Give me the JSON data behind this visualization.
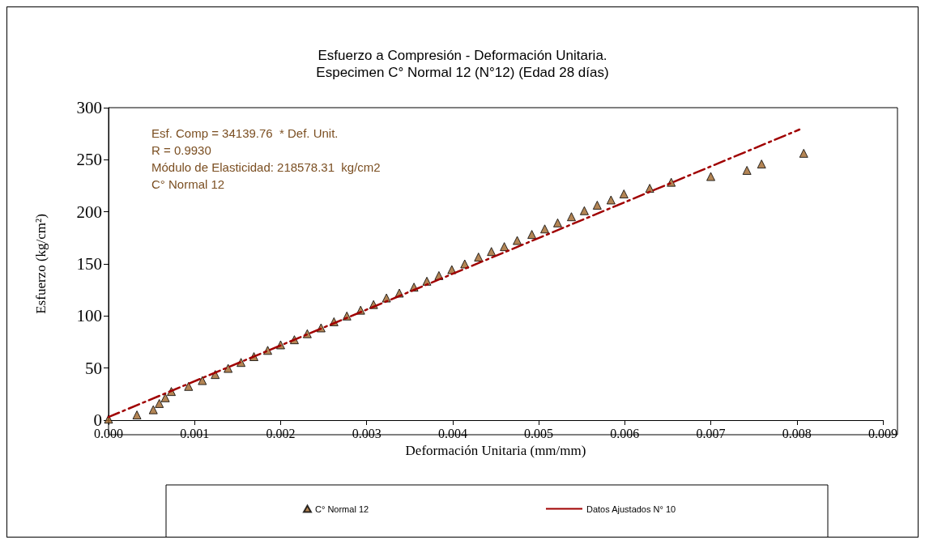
{
  "chart_data": {
    "type": "scatter",
    "title": "Esfuerzo a Compresión - Deformación Unitaria.",
    "subtitle": "Especimen C° Normal 12 (N°12) (Edad 28 días)",
    "xlabel": "Deformación Unitaria (mm/mm)",
    "ylabel": "Esfuerzo (kg/cm²)",
    "annotations": [
      "Esf. Comp = 34139.76  * Def. Unit.",
      "R = 0.9930",
      "Módulo de Elasticidad: 218578.31  kg/cm2",
      "C° Normal 12"
    ],
    "xlim": [
      0,
      0.009
    ],
    "xticks": [
      {
        "value": 0,
        "label": "0.000"
      },
      {
        "value": 0.001,
        "label": "0.001"
      },
      {
        "value": 0.002,
        "label": "0.002"
      },
      {
        "value": 0.003,
        "label": "0.003"
      },
      {
        "value": 0.004,
        "label": "0.004"
      },
      {
        "value": 0.005,
        "label": "0.005"
      },
      {
        "value": 0.006,
        "label": "0.006"
      },
      {
        "value": 0.007,
        "label": "0.007"
      },
      {
        "value": 0.008,
        "label": "0.008"
      },
      {
        "value": 0.009,
        "label": "0.009"
      }
    ],
    "ylim": [
      0,
      300
    ],
    "yticks": [
      0,
      50,
      100,
      150,
      200,
      250,
      300
    ],
    "grid": false,
    "legend": "bottom",
    "series": [
      {
        "name": "C° Normal 12",
        "color": "#a0672a",
        "marker": "triangle",
        "x": [
          0,
          0.00033,
          0.00052,
          0.00059,
          0.00066,
          0.00073,
          0.00093,
          0.00109,
          0.00124,
          0.00139,
          0.00154,
          0.00169,
          0.00185,
          0.002,
          0.00216,
          0.00231,
          0.00247,
          0.00262,
          0.00277,
          0.00293,
          0.00308,
          0.00323,
          0.00338,
          0.00355,
          0.0037,
          0.00384,
          0.00399,
          0.00414,
          0.0043,
          0.00445,
          0.0046,
          0.00475,
          0.00492,
          0.00507,
          0.00522,
          0.00538,
          0.00553,
          0.00568,
          0.00584,
          0.00599,
          0.00629,
          0.00654,
          0.007,
          0.00742,
          0.00759,
          0.00808
        ],
        "values": [
          1,
          5,
          10,
          16,
          21.5,
          27.5,
          32.4,
          38,
          43.8,
          49.7,
          55.4,
          61,
          67,
          72.3,
          77.2,
          83,
          88.6,
          94.5,
          100,
          105.6,
          111,
          117.3,
          122,
          127.7,
          133.4,
          138.8,
          144.5,
          150,
          156.6,
          161.9,
          166.6,
          172.5,
          178.3,
          183.6,
          189.4,
          195.3,
          201.1,
          206.4,
          211.4,
          217.2,
          222.6,
          228.4,
          233.9,
          239.8,
          245.9,
          256.2
        ]
      },
      {
        "name": "Datos Ajustados N° 10",
        "type": "line",
        "color": "#a00000",
        "marker": "none",
        "line_style": "dashed",
        "x": [
          0,
          0.00803
        ],
        "values": [
          3,
          279
        ]
      }
    ]
  }
}
